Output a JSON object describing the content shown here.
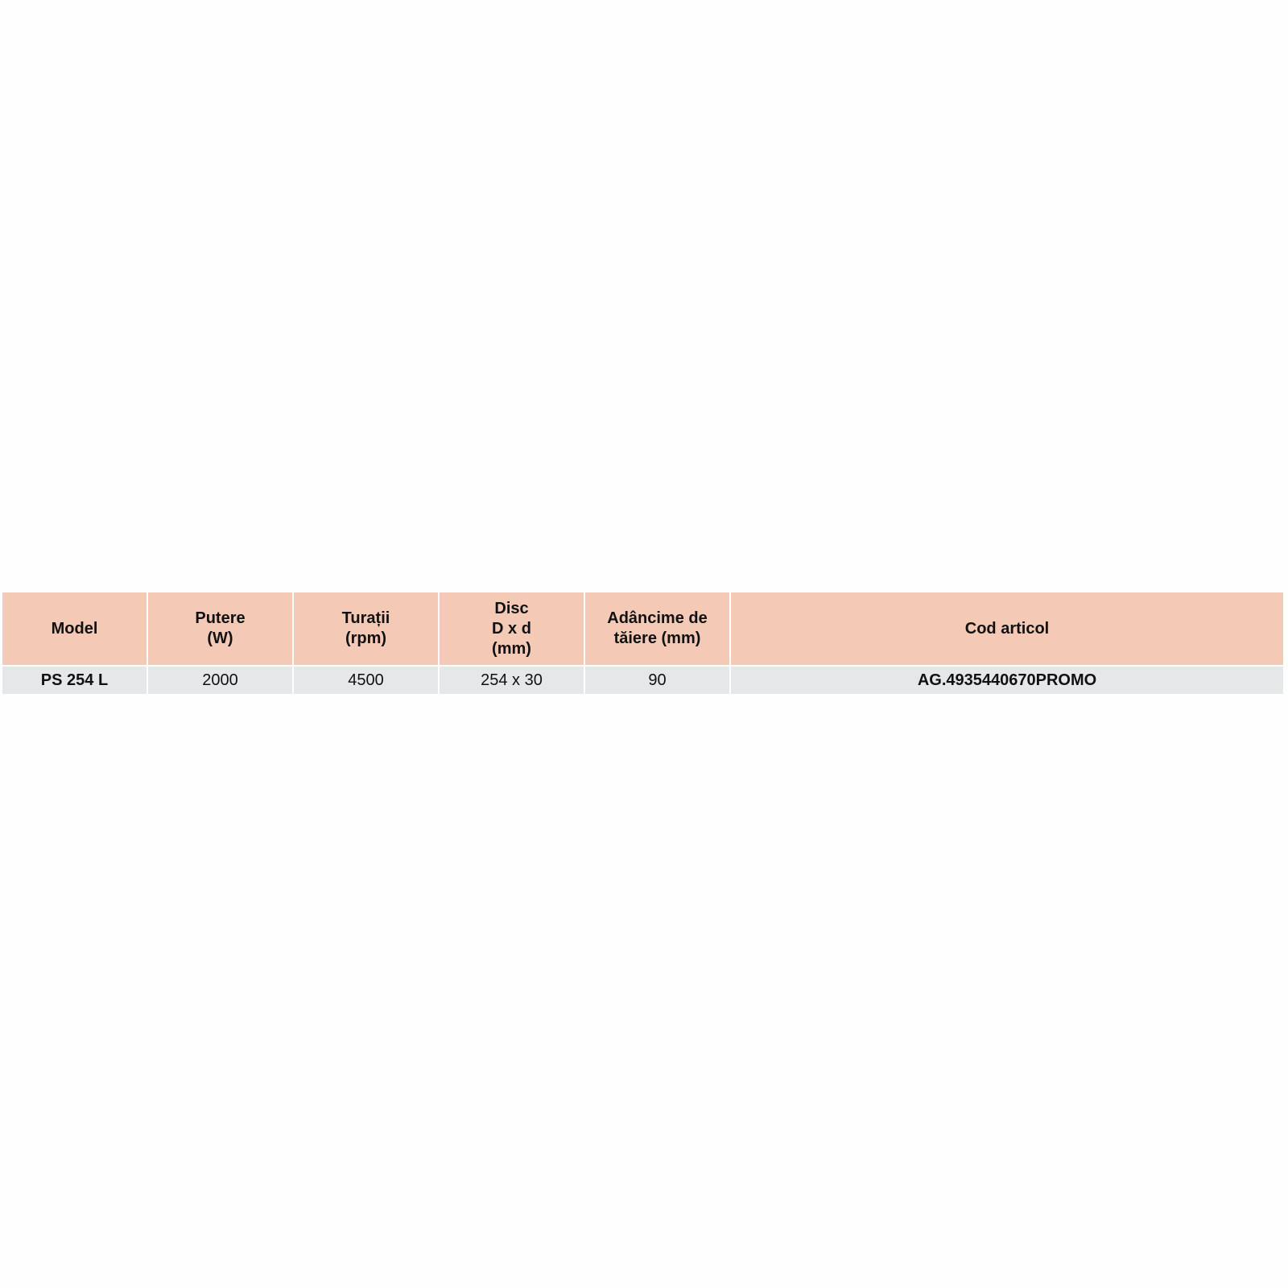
{
  "table": {
    "headers": [
      [
        "Model"
      ],
      [
        "Putere",
        "(W)"
      ],
      [
        "Turații",
        "(rpm)"
      ],
      [
        "Disc",
        "D x d",
        "(mm)"
      ],
      [
        "Adâncime de",
        "tăiere (mm)"
      ],
      [
        "Cod articol"
      ]
    ],
    "rows": [
      [
        "PS 254 L",
        "2000",
        "4500",
        "254 x 30",
        "90",
        "AG.4935440670PROMO"
      ]
    ],
    "colors": {
      "header_bg": "#f4c9b6",
      "row_bg": "#e6e7e9"
    }
  }
}
